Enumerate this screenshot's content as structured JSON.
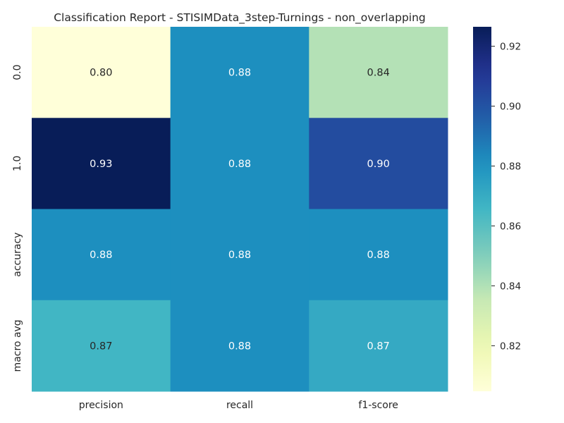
{
  "chart_data": {
    "type": "heatmap",
    "title": "Classification Report - STISIMData_3step-Turnings - non_overlapping",
    "columns": [
      "precision",
      "recall",
      "f1-score"
    ],
    "rows": [
      "0.0",
      "1.0",
      "accuracy",
      "macro avg"
    ],
    "values": [
      [
        0.8048,
        0.8816,
        0.8393
      ],
      [
        0.9265,
        0.8816,
        0.9026
      ],
      [
        0.8816,
        0.8816,
        0.8816
      ],
      [
        0.8657,
        0.8816,
        0.8709
      ]
    ],
    "cell_labels": [
      [
        "0.80",
        "0.88",
        "0.84"
      ],
      [
        "0.93",
        "0.88",
        "0.90"
      ],
      [
        "0.88",
        "0.88",
        "0.88"
      ],
      [
        "0.87",
        "0.88",
        "0.87"
      ]
    ],
    "colormap": "YlGnBu",
    "colorbar": {
      "range": [
        0.8048,
        0.9265
      ],
      "ticks": [
        0.82,
        0.84,
        0.86,
        0.88,
        0.9,
        0.92
      ],
      "tick_labels": [
        "0.82",
        "0.84",
        "0.86",
        "0.88",
        "0.90",
        "0.92"
      ]
    }
  }
}
